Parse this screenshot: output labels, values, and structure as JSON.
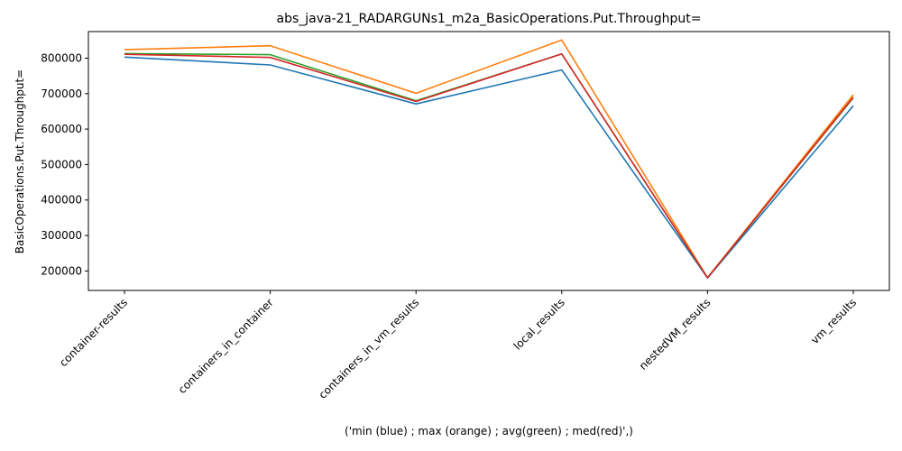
{
  "chart_data": {
    "type": "line",
    "title": "abs_java-21_RADARGUNs1_m2a_BasicOperations.Put.Throughput=",
    "xlabel": "('min (blue) ; max (orange) ; avg(green) ; med(red)',)",
    "ylabel": "BasicOperations.Put.Throughput=",
    "categories": [
      "container-results",
      "containers_in_container",
      "containers_in_vm_results",
      "local_results",
      "nestedVM_results",
      "vm_results"
    ],
    "ylim": [
      145000,
      875000
    ],
    "yticks": [
      200000,
      300000,
      400000,
      500000,
      600000,
      700000,
      800000
    ],
    "grid": false,
    "series": [
      {
        "color": "#1f77b4",
        "values": [
          803000,
          781000,
          671000,
          767000,
          180000,
          666000
        ]
      },
      {
        "color": "#ff7f0e",
        "values": [
          824000,
          835000,
          701000,
          851000,
          181000,
          697000
        ]
      },
      {
        "color": "#2ca02c",
        "values": [
          813000,
          810000,
          680000,
          812000,
          180500,
          688000
        ]
      },
      {
        "color": "#d62728",
        "values": [
          811000,
          802000,
          678000,
          812000,
          180500,
          690000
        ]
      }
    ]
  }
}
